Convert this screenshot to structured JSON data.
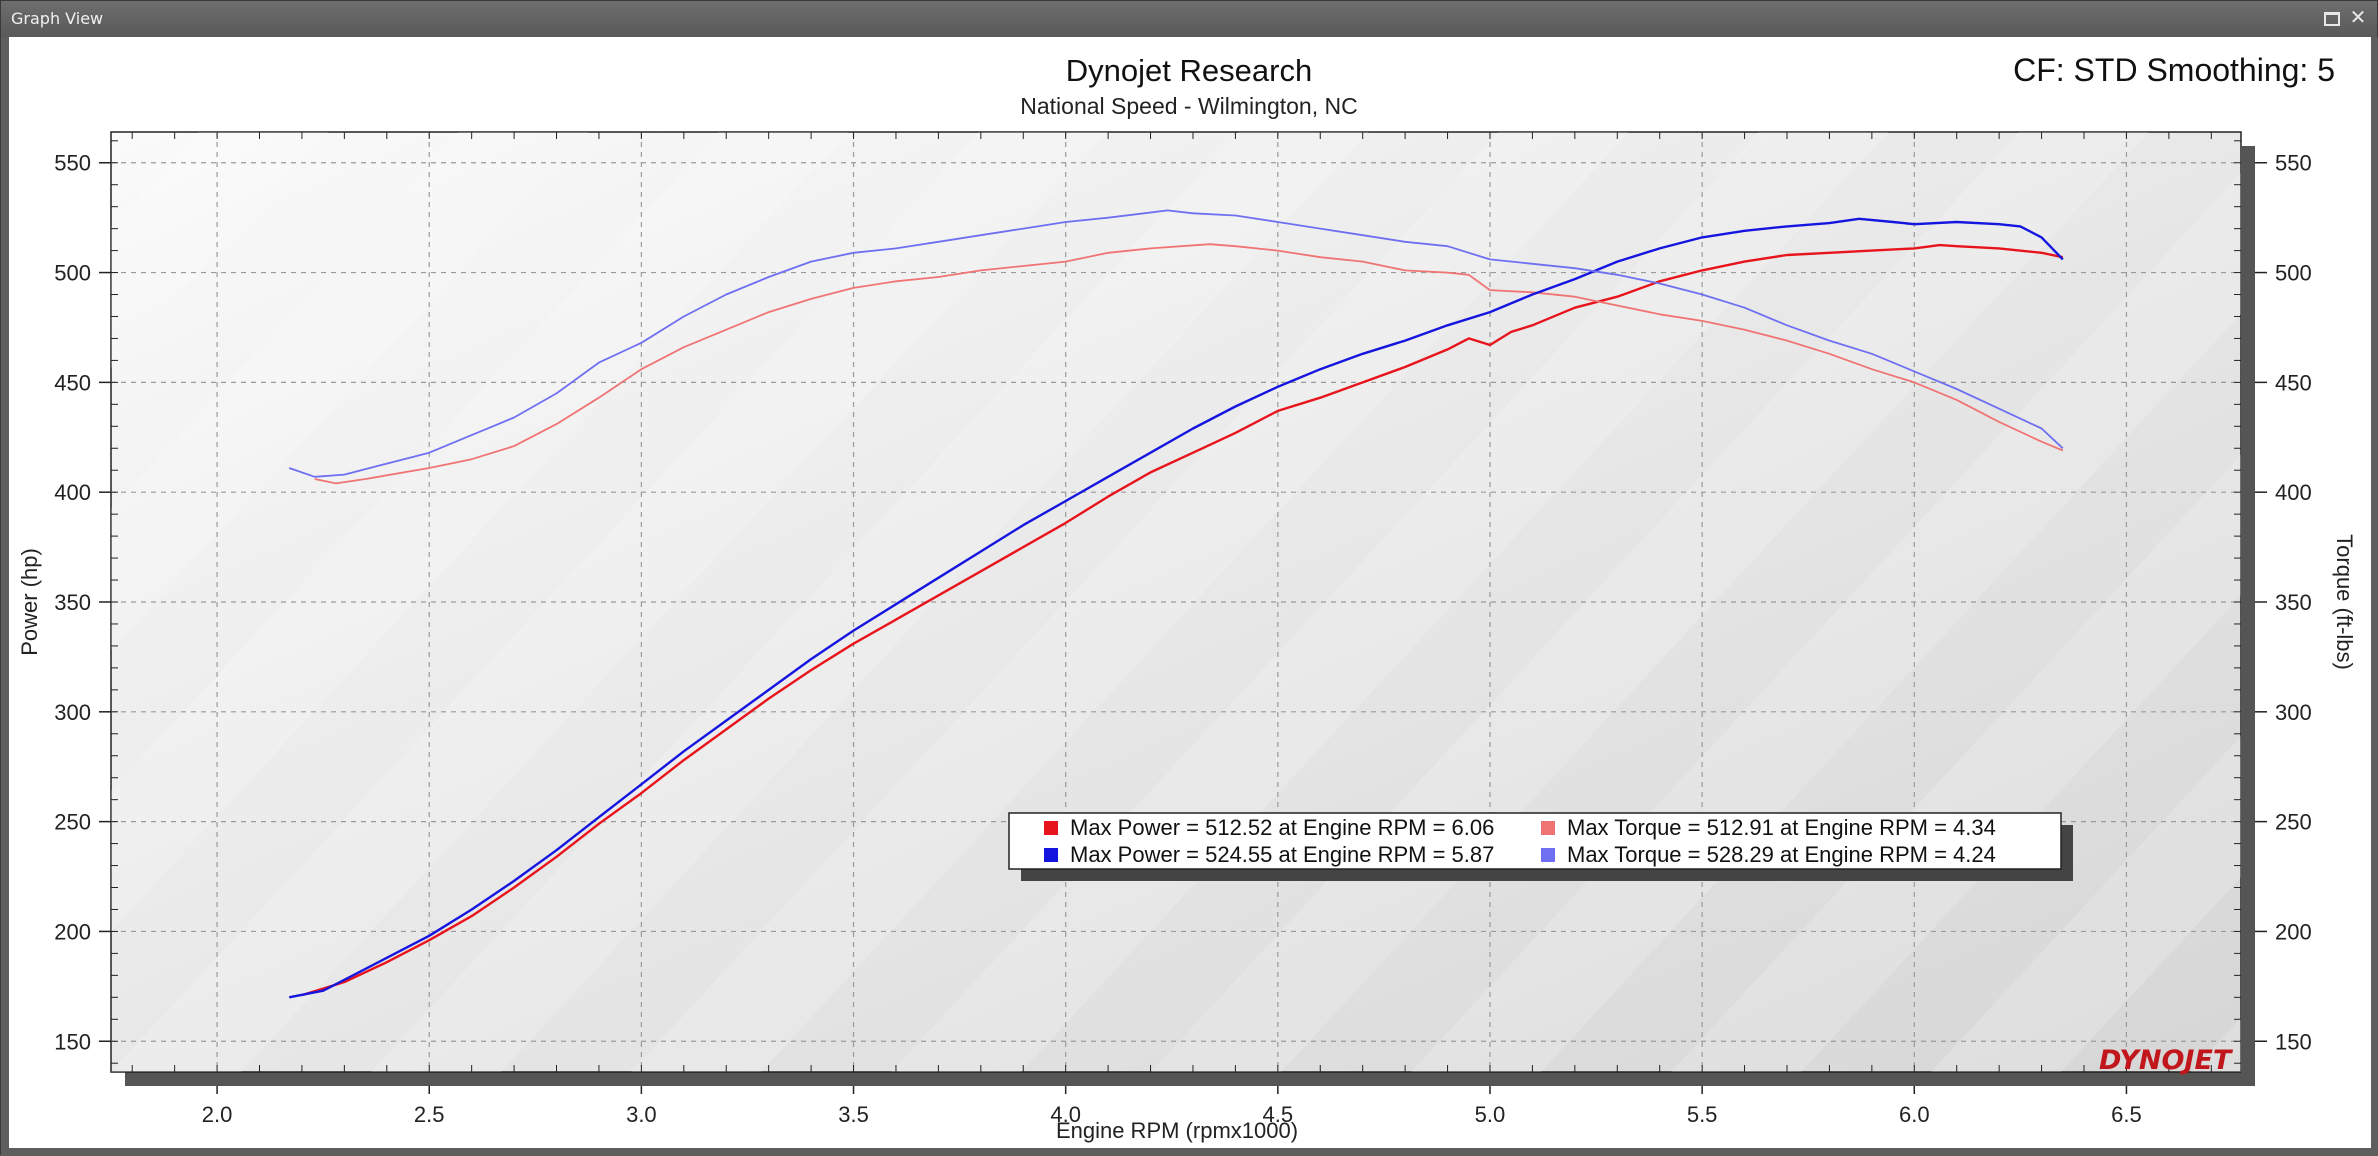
{
  "window": {
    "title": "Graph View"
  },
  "brand": {
    "logo_text": "DYNOJET"
  },
  "colors": {
    "run1_power": "#e8141c",
    "run1_torque": "#f07474",
    "run2_power": "#1515e0",
    "run2_torque": "#6f6ff2"
  },
  "chart_data": {
    "type": "line",
    "title": "Dynojet Research",
    "subtitle": "National Speed - Wilmington, NC",
    "header_right": "CF: STD Smoothing: 5",
    "xlabel": "Engine RPM (rpmx1000)",
    "ylabel": "Power (hp)",
    "y2label": "Torque (ft-lbs)",
    "xlim": [
      1.75,
      6.77
    ],
    "ylim": [
      136,
      564
    ],
    "x_ticks": [
      "2.0",
      "2.5",
      "3.0",
      "3.5",
      "4.0",
      "4.5",
      "5.0",
      "5.5",
      "6.0",
      "6.5"
    ],
    "y_ticks": [
      "150",
      "200",
      "250",
      "300",
      "350",
      "400",
      "450",
      "500",
      "550"
    ],
    "y2_ticks": [
      "150",
      "200",
      "250",
      "300",
      "350",
      "400",
      "450",
      "500",
      "550"
    ],
    "grid": true,
    "legend": [
      "Max Power = 512.52 at Engine RPM = 6.06",
      "Max Torque = 512.91 at Engine RPM = 4.34",
      "Max Power = 524.55 at Engine RPM = 5.87",
      "Max Torque = 528.29 at Engine RPM = 4.24"
    ],
    "legend_position": "lower-right",
    "series": [
      {
        "axis": "left",
        "color_key": "run1_power",
        "points": [
          [
            2.2,
            171
          ],
          [
            2.3,
            177
          ],
          [
            2.4,
            186
          ],
          [
            2.5,
            196
          ],
          [
            2.6,
            207
          ],
          [
            2.7,
            220
          ],
          [
            2.8,
            234
          ],
          [
            2.9,
            249
          ],
          [
            3.0,
            263
          ],
          [
            3.1,
            278
          ],
          [
            3.2,
            292
          ],
          [
            3.3,
            306
          ],
          [
            3.4,
            319
          ],
          [
            3.5,
            331
          ],
          [
            3.6,
            342
          ],
          [
            3.7,
            353
          ],
          [
            3.8,
            364
          ],
          [
            3.9,
            375
          ],
          [
            4.0,
            386
          ],
          [
            4.1,
            398
          ],
          [
            4.2,
            409
          ],
          [
            4.3,
            418
          ],
          [
            4.4,
            427
          ],
          [
            4.5,
            437
          ],
          [
            4.6,
            443
          ],
          [
            4.7,
            450
          ],
          [
            4.8,
            457
          ],
          [
            4.9,
            465
          ],
          [
            4.95,
            470
          ],
          [
            5.0,
            467
          ],
          [
            5.05,
            473
          ],
          [
            5.1,
            476
          ],
          [
            5.2,
            484
          ],
          [
            5.3,
            489
          ],
          [
            5.4,
            496
          ],
          [
            5.5,
            501
          ],
          [
            5.6,
            505
          ],
          [
            5.7,
            508
          ],
          [
            5.8,
            509
          ],
          [
            5.9,
            510
          ],
          [
            6.0,
            511
          ],
          [
            6.06,
            512.5
          ],
          [
            6.1,
            512
          ],
          [
            6.2,
            511
          ],
          [
            6.3,
            509
          ],
          [
            6.35,
            507
          ]
        ]
      },
      {
        "axis": "right",
        "color_key": "run1_torque",
        "points": [
          [
            2.23,
            406
          ],
          [
            2.28,
            404
          ],
          [
            2.35,
            406
          ],
          [
            2.5,
            411
          ],
          [
            2.6,
            415
          ],
          [
            2.7,
            421
          ],
          [
            2.8,
            431
          ],
          [
            2.9,
            443
          ],
          [
            3.0,
            456
          ],
          [
            3.1,
            466
          ],
          [
            3.2,
            474
          ],
          [
            3.3,
            482
          ],
          [
            3.4,
            488
          ],
          [
            3.5,
            493
          ],
          [
            3.6,
            496
          ],
          [
            3.7,
            498
          ],
          [
            3.8,
            501
          ],
          [
            3.9,
            503
          ],
          [
            4.0,
            505
          ],
          [
            4.1,
            509
          ],
          [
            4.2,
            511
          ],
          [
            4.34,
            512.9
          ],
          [
            4.4,
            512
          ],
          [
            4.5,
            510
          ],
          [
            4.6,
            507
          ],
          [
            4.7,
            505
          ],
          [
            4.8,
            501
          ],
          [
            4.9,
            500
          ],
          [
            4.95,
            499
          ],
          [
            5.0,
            492
          ],
          [
            5.1,
            491
          ],
          [
            5.2,
            489
          ],
          [
            5.3,
            485
          ],
          [
            5.4,
            481
          ],
          [
            5.5,
            478
          ],
          [
            5.6,
            474
          ],
          [
            5.7,
            469
          ],
          [
            5.8,
            463
          ],
          [
            5.9,
            456
          ],
          [
            6.0,
            450
          ],
          [
            6.1,
            442
          ],
          [
            6.2,
            432
          ],
          [
            6.3,
            423
          ],
          [
            6.35,
            419
          ]
        ]
      },
      {
        "axis": "left",
        "color_key": "run2_power",
        "points": [
          [
            2.17,
            170
          ],
          [
            2.25,
            173
          ],
          [
            2.3,
            178
          ],
          [
            2.4,
            188
          ],
          [
            2.5,
            198
          ],
          [
            2.6,
            210
          ],
          [
            2.7,
            223
          ],
          [
            2.8,
            237
          ],
          [
            2.9,
            252
          ],
          [
            3.0,
            267
          ],
          [
            3.1,
            282
          ],
          [
            3.2,
            296
          ],
          [
            3.3,
            310
          ],
          [
            3.4,
            324
          ],
          [
            3.5,
            337
          ],
          [
            3.6,
            349
          ],
          [
            3.7,
            361
          ],
          [
            3.8,
            373
          ],
          [
            3.9,
            385
          ],
          [
            4.0,
            396
          ],
          [
            4.1,
            407
          ],
          [
            4.2,
            418
          ],
          [
            4.3,
            429
          ],
          [
            4.4,
            439
          ],
          [
            4.5,
            448
          ],
          [
            4.6,
            456
          ],
          [
            4.7,
            463
          ],
          [
            4.8,
            469
          ],
          [
            4.9,
            476
          ],
          [
            5.0,
            482
          ],
          [
            5.1,
            490
          ],
          [
            5.2,
            497
          ],
          [
            5.3,
            505
          ],
          [
            5.4,
            511
          ],
          [
            5.5,
            516
          ],
          [
            5.6,
            519
          ],
          [
            5.7,
            521
          ],
          [
            5.8,
            522.5
          ],
          [
            5.87,
            524.5
          ],
          [
            5.95,
            523
          ],
          [
            6.0,
            522
          ],
          [
            6.1,
            523
          ],
          [
            6.2,
            522
          ],
          [
            6.25,
            521
          ],
          [
            6.3,
            516
          ],
          [
            6.35,
            506
          ]
        ]
      },
      {
        "axis": "right",
        "color_key": "run2_torque",
        "points": [
          [
            2.17,
            411
          ],
          [
            2.23,
            407
          ],
          [
            2.3,
            408
          ],
          [
            2.4,
            413
          ],
          [
            2.5,
            418
          ],
          [
            2.6,
            426
          ],
          [
            2.7,
            434
          ],
          [
            2.8,
            445
          ],
          [
            2.9,
            459
          ],
          [
            3.0,
            468
          ],
          [
            3.1,
            480
          ],
          [
            3.2,
            490
          ],
          [
            3.3,
            498
          ],
          [
            3.4,
            505
          ],
          [
            3.5,
            509
          ],
          [
            3.6,
            511
          ],
          [
            3.7,
            514
          ],
          [
            3.8,
            517
          ],
          [
            3.9,
            520
          ],
          [
            4.0,
            523
          ],
          [
            4.1,
            525
          ],
          [
            4.24,
            528.3
          ],
          [
            4.3,
            527
          ],
          [
            4.4,
            526
          ],
          [
            4.5,
            523
          ],
          [
            4.6,
            520
          ],
          [
            4.7,
            517
          ],
          [
            4.8,
            514
          ],
          [
            4.9,
            512
          ],
          [
            5.0,
            506
          ],
          [
            5.1,
            504
          ],
          [
            5.2,
            502
          ],
          [
            5.3,
            499
          ],
          [
            5.4,
            495
          ],
          [
            5.5,
            490
          ],
          [
            5.6,
            484
          ],
          [
            5.7,
            476
          ],
          [
            5.8,
            469
          ],
          [
            5.9,
            463
          ],
          [
            6.0,
            455
          ],
          [
            6.1,
            447
          ],
          [
            6.2,
            438
          ],
          [
            6.3,
            429
          ],
          [
            6.35,
            420
          ]
        ]
      }
    ]
  }
}
